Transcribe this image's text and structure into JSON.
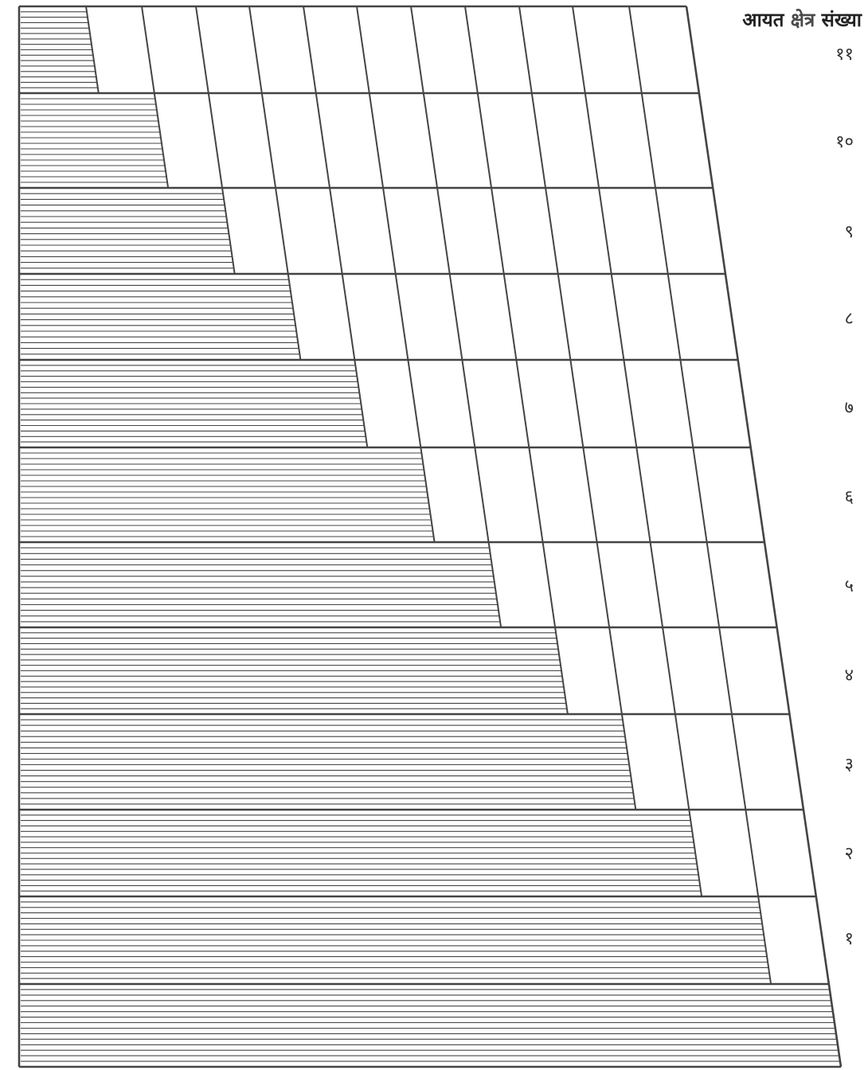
{
  "title": {
    "part1": "आयत",
    "part2": "क्षेत्र",
    "part3": "संख्या"
  },
  "row_labels": [
    "११",
    "१०",
    "९",
    "८",
    "७",
    "६",
    "५",
    "४",
    "३",
    "२",
    "१"
  ],
  "colors": {
    "line": "#444444",
    "background": "#ffffff"
  }
}
